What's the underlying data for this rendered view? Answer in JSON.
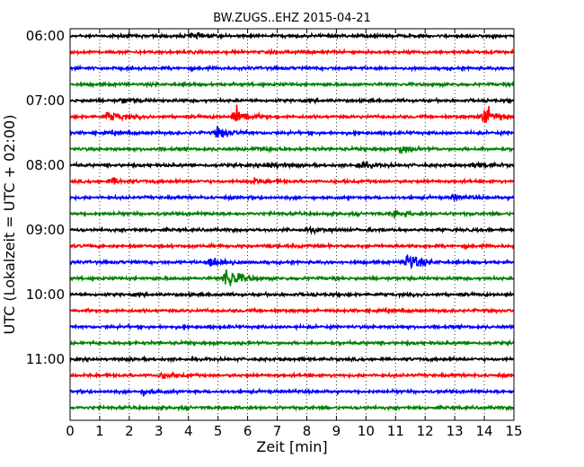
{
  "chart_data": {
    "type": "line",
    "title": "BW.ZUGS..EHZ 2015-04-21",
    "xlabel": "Zeit  [min]",
    "ylabel": "UTC (Lokalzeit = UTC + 02:00)",
    "xlim": [
      0,
      15
    ],
    "x_ticks": [
      "0",
      "1",
      "2",
      "3",
      "4",
      "5",
      "6",
      "7",
      "8",
      "9",
      "10",
      "11",
      "12",
      "13",
      "14",
      "15"
    ],
    "y_ticks": [
      "06:00",
      "07:00",
      "08:00",
      "09:00",
      "10:00",
      "11:00"
    ],
    "grid": true,
    "colors": [
      "#000000",
      "#ff0000",
      "#0000ff",
      "#008000"
    ],
    "traces": [
      {
        "start": "06:00",
        "color": "#000000",
        "events": [
          [
            4.1,
            0.6
          ]
        ]
      },
      {
        "start": "06:15",
        "color": "#ff0000",
        "events": []
      },
      {
        "start": "06:30",
        "color": "#0000ff",
        "events": []
      },
      {
        "start": "06:45",
        "color": "#008000",
        "events": []
      },
      {
        "start": "07:00",
        "color": "#000000",
        "events": [
          [
            1.8,
            0.5
          ]
        ]
      },
      {
        "start": "07:15",
        "color": "#ff0000",
        "events": [
          [
            1.3,
            1.2
          ],
          [
            5.6,
            2.2
          ],
          [
            14.0,
            2.6
          ]
        ]
      },
      {
        "start": "07:30",
        "color": "#0000ff",
        "events": [
          [
            5.0,
            1.3
          ]
        ]
      },
      {
        "start": "07:45",
        "color": "#008000",
        "events": [
          [
            6.3,
            0.6
          ],
          [
            11.2,
            0.8
          ]
        ]
      },
      {
        "start": "08:00",
        "color": "#000000",
        "events": [
          [
            6.7,
            0.6
          ],
          [
            9.8,
            0.7
          ],
          [
            13.8,
            0.5
          ]
        ]
      },
      {
        "start": "08:15",
        "color": "#ff0000",
        "events": [
          [
            1.4,
            0.6
          ],
          [
            6.2,
            0.7
          ]
        ]
      },
      {
        "start": "08:30",
        "color": "#0000ff",
        "events": [
          [
            13.0,
            0.5
          ]
        ]
      },
      {
        "start": "08:45",
        "color": "#008000",
        "events": [
          [
            11.0,
            0.6
          ]
        ]
      },
      {
        "start": "09:00",
        "color": "#000000",
        "events": [
          [
            8.0,
            0.5
          ]
        ]
      },
      {
        "start": "09:15",
        "color": "#ff0000",
        "events": []
      },
      {
        "start": "09:30",
        "color": "#0000ff",
        "events": [
          [
            4.8,
            1.6
          ],
          [
            11.4,
            2.4
          ]
        ]
      },
      {
        "start": "09:45",
        "color": "#008000",
        "events": [
          [
            5.3,
            3.0
          ]
        ]
      },
      {
        "start": "10:00",
        "color": "#000000",
        "events": []
      },
      {
        "start": "10:15",
        "color": "#ff0000",
        "events": []
      },
      {
        "start": "10:30",
        "color": "#0000ff",
        "events": []
      },
      {
        "start": "10:45",
        "color": "#008000",
        "events": []
      },
      {
        "start": "11:00",
        "color": "#000000",
        "events": []
      },
      {
        "start": "11:15",
        "color": "#ff0000",
        "events": [
          [
            3.1,
            0.6
          ]
        ]
      },
      {
        "start": "11:30",
        "color": "#0000ff",
        "events": [
          [
            2.5,
            0.6
          ]
        ]
      },
      {
        "start": "11:45",
        "color": "#008000",
        "events": []
      }
    ]
  }
}
